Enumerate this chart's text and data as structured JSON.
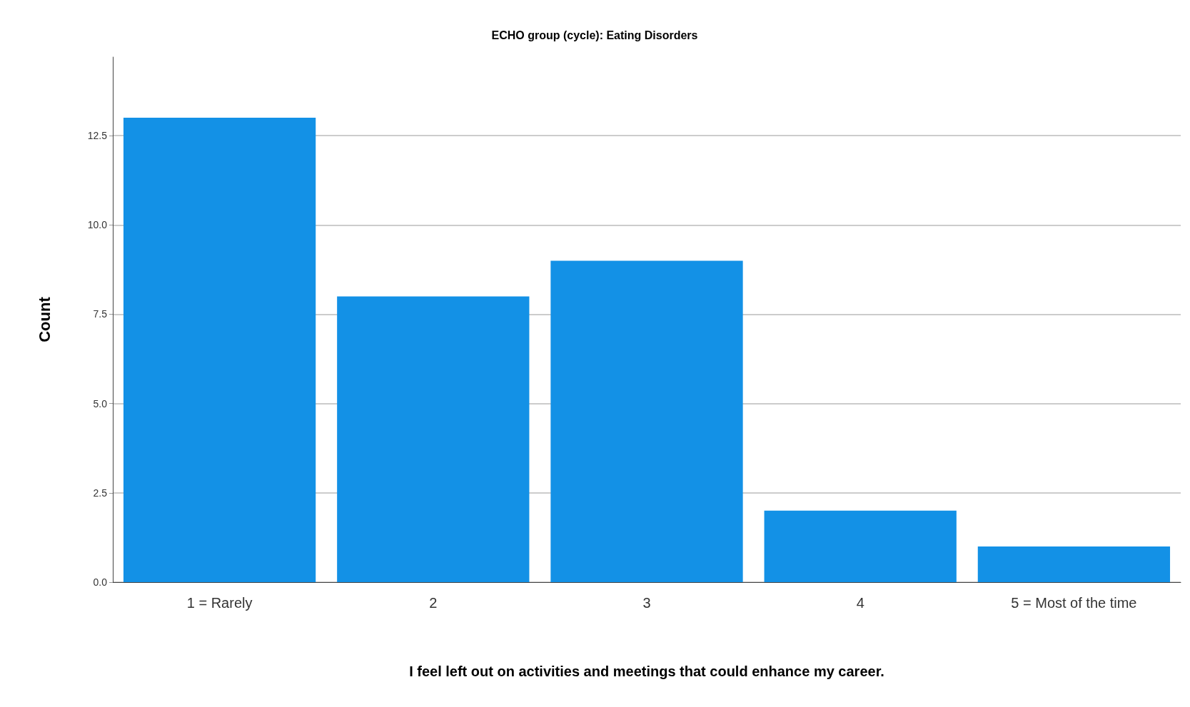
{
  "chart_data": {
    "type": "bar",
    "title": "ECHO group (cycle): Eating Disorders",
    "xlabel": "I feel left out on activities and meetings that could enhance my career.",
    "ylabel": "Count",
    "categories": [
      "1 = Rarely",
      "2",
      "3",
      "4",
      "5 = Most of the time"
    ],
    "values": [
      13,
      8,
      9,
      2,
      1
    ],
    "color": "#1391e6",
    "ylim": [
      0,
      14.7
    ],
    "yticks": [
      {
        "value": 0,
        "label": "0.0"
      },
      {
        "value": 2.5,
        "label": "2.5"
      },
      {
        "value": 5,
        "label": "5.0"
      },
      {
        "value": 7.5,
        "label": "7.5"
      },
      {
        "value": 10,
        "label": "10.0"
      },
      {
        "value": 12.5,
        "label": "12.5"
      }
    ],
    "grid": "y"
  }
}
